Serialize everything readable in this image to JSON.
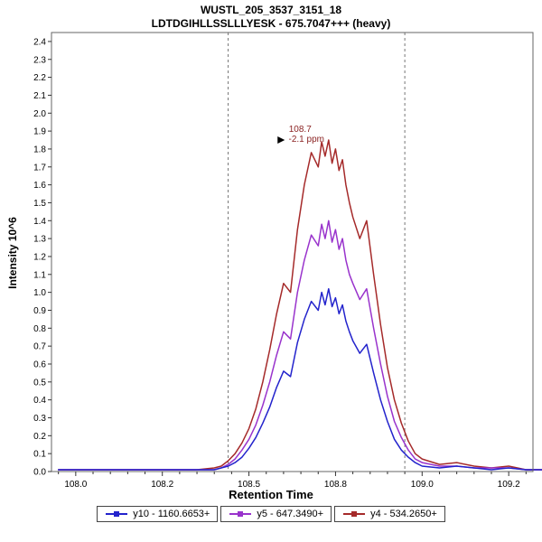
{
  "chart_data": {
    "type": "line",
    "title": "WUSTL_205_3537_3151_18",
    "subtitle": "LDTDGIHLLSSLLLYESK - 675.7047+++ (heavy)",
    "xlabel": "Retention Time",
    "ylabel": "Intensity 10^6",
    "xlim": [
      107.93,
      109.32
    ],
    "ylim": [
      0,
      2.45
    ],
    "grid": false,
    "legend_position": "bottom",
    "xtick_values": [
      108.0,
      108.25,
      108.5,
      108.75,
      109.0,
      109.25
    ],
    "xtick_labels": [
      "108.0",
      "108.2",
      "108.5",
      "108.8",
      "109.0",
      "109.2"
    ],
    "ytick_labels": [
      "0.0",
      "0.1",
      "0.2",
      "0.3",
      "0.4",
      "0.5",
      "0.6",
      "0.7",
      "0.8",
      "0.9",
      "1.0",
      "1.1",
      "1.2",
      "1.3",
      "1.4",
      "1.5",
      "1.6",
      "1.7",
      "1.8",
      "1.9",
      "2.0",
      "2.1",
      "2.2",
      "2.3",
      "2.4"
    ],
    "integration_boundaries": [
      108.44,
      108.95
    ],
    "annotation": {
      "rt": "108.7",
      "ppm": "-2.1 ppm",
      "x": 108.7,
      "y": 1.85,
      "color": "#8b2323"
    },
    "x": [
      107.95,
      108.0,
      108.05,
      108.1,
      108.15,
      108.2,
      108.25,
      108.3,
      108.35,
      108.4,
      108.42,
      108.44,
      108.46,
      108.48,
      108.5,
      108.52,
      108.54,
      108.56,
      108.58,
      108.6,
      108.62,
      108.64,
      108.66,
      108.68,
      108.7,
      108.71,
      108.72,
      108.73,
      108.74,
      108.75,
      108.76,
      108.77,
      108.78,
      108.79,
      108.8,
      108.82,
      108.84,
      108.86,
      108.88,
      108.9,
      108.92,
      108.94,
      108.96,
      108.98,
      109.0,
      109.05,
      109.1,
      109.15,
      109.2,
      109.25,
      109.3,
      109.35
    ],
    "series": [
      {
        "name": "y10 - 1160.6653+",
        "color": "#2323cc",
        "values": [
          0.01,
          0.01,
          0.01,
          0.01,
          0.01,
          0.01,
          0.01,
          0.01,
          0.01,
          0.01,
          0.02,
          0.03,
          0.05,
          0.08,
          0.13,
          0.19,
          0.27,
          0.36,
          0.47,
          0.56,
          0.53,
          0.72,
          0.85,
          0.95,
          0.9,
          1.0,
          0.93,
          1.02,
          0.92,
          0.97,
          0.88,
          0.93,
          0.84,
          0.78,
          0.73,
          0.66,
          0.71,
          0.55,
          0.4,
          0.28,
          0.18,
          0.12,
          0.08,
          0.05,
          0.03,
          0.02,
          0.03,
          0.02,
          0.01,
          0.02,
          0.01,
          0.01
        ]
      },
      {
        "name": "y5 - 647.3490+",
        "color": "#9933cc",
        "values": [
          0.01,
          0.01,
          0.01,
          0.01,
          0.01,
          0.01,
          0.01,
          0.01,
          0.01,
          0.01,
          0.02,
          0.04,
          0.07,
          0.12,
          0.18,
          0.26,
          0.37,
          0.5,
          0.65,
          0.78,
          0.74,
          1.0,
          1.18,
          1.32,
          1.26,
          1.38,
          1.3,
          1.4,
          1.28,
          1.35,
          1.24,
          1.3,
          1.18,
          1.1,
          1.05,
          0.96,
          1.02,
          0.8,
          0.6,
          0.42,
          0.28,
          0.19,
          0.12,
          0.07,
          0.05,
          0.03,
          0.03,
          0.02,
          0.02,
          0.02,
          0.01,
          0.01
        ]
      },
      {
        "name": "y4 - 534.2650+",
        "color": "#a52a2a",
        "values": [
          0.01,
          0.01,
          0.01,
          0.01,
          0.01,
          0.01,
          0.01,
          0.01,
          0.01,
          0.02,
          0.03,
          0.06,
          0.1,
          0.16,
          0.24,
          0.35,
          0.5,
          0.68,
          0.88,
          1.05,
          1.0,
          1.35,
          1.6,
          1.78,
          1.7,
          1.84,
          1.76,
          1.85,
          1.72,
          1.8,
          1.68,
          1.74,
          1.6,
          1.5,
          1.42,
          1.3,
          1.4,
          1.1,
          0.82,
          0.58,
          0.4,
          0.27,
          0.17,
          0.1,
          0.07,
          0.04,
          0.05,
          0.03,
          0.02,
          0.03,
          0.01,
          0.01
        ]
      }
    ]
  }
}
